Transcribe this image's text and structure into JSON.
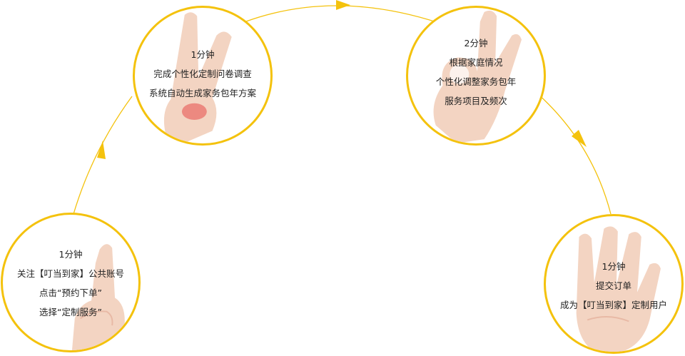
{
  "colors": {
    "ring": "#f4c20d",
    "arrow": "#f4c20d",
    "text": "#222222",
    "skin": "#f3d4c2",
    "skin_shade": "#e8b9a5",
    "highlight": "#e64b4b"
  },
  "steps": [
    {
      "hand_icon": "one-finger-hand-icon",
      "lines": [
        "1分钟",
        "关注【叮当到家】公共账号",
        "点击“预约下单”",
        "选择“定制服务”"
      ]
    },
    {
      "hand_icon": "two-finger-hand-icon",
      "lines": [
        "1分钟",
        "完成个性化定制问卷调查",
        "系统自动生成家务包年方案"
      ]
    },
    {
      "hand_icon": "ok-hand-icon",
      "lines": [
        "2分钟",
        "根据家庭情况",
        "个性化调整家务包年",
        "服务项目及频次"
      ]
    },
    {
      "hand_icon": "four-finger-hand-icon",
      "lines": [
        "1分钟",
        "提交订单",
        "成为【叮当到家】定制用户"
      ]
    }
  ]
}
